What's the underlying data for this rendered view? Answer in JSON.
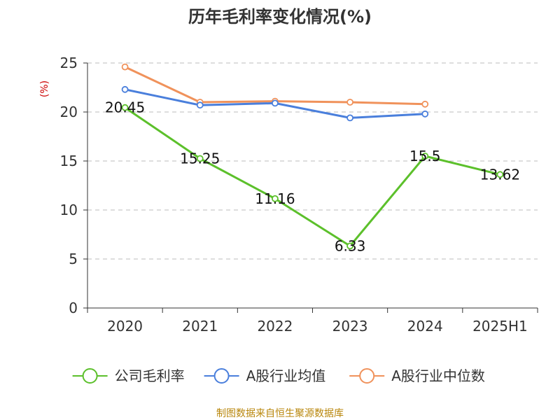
{
  "chart_data": {
    "type": "line",
    "title": "历年毛利率变化情况(%)",
    "ylabel": "(%)",
    "ylim": [
      0,
      25
    ],
    "yticks": [
      0,
      5,
      10,
      15,
      20,
      25
    ],
    "categories": [
      "2020",
      "2021",
      "2022",
      "2023",
      "2024",
      "2025H1"
    ],
    "grid": true,
    "legend_position": "bottom",
    "series": [
      {
        "name": "公司毛利率",
        "color": "#5cc02b",
        "values": [
          20.45,
          15.25,
          11.16,
          6.33,
          15.5,
          13.62
        ],
        "labels": [
          "20.45",
          "15.25",
          "11.16",
          "6.33",
          "15.5",
          "13.62"
        ]
      },
      {
        "name": "A股行业均值",
        "color": "#4a7fdc",
        "values": [
          22.3,
          20.7,
          20.9,
          19.4,
          19.8,
          null
        ]
      },
      {
        "name": "A股行业中位数",
        "color": "#f0925b",
        "values": [
          24.6,
          21.0,
          21.1,
          21.0,
          20.8,
          null
        ]
      }
    ]
  },
  "source": "制图数据来自恒生聚源数据库"
}
